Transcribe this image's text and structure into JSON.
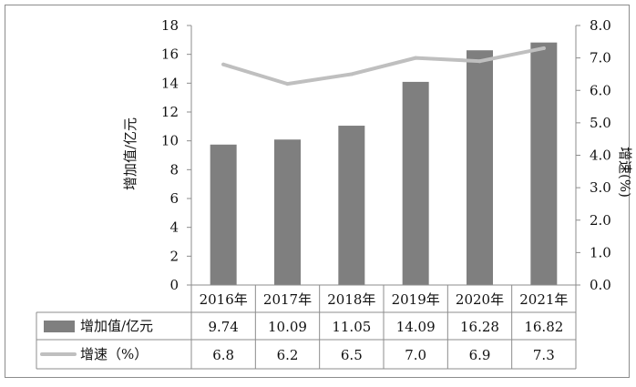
{
  "chart_data": {
    "type": "bar",
    "categories": [
      "2016年",
      "2017年",
      "2018年",
      "2019年",
      "2020年",
      "2021年"
    ],
    "series": [
      {
        "name": "增加值/亿元",
        "type": "bar",
        "axis": "left",
        "color": "#7f7f7f",
        "values": [
          9.74,
          10.09,
          11.05,
          14.09,
          16.28,
          16.82
        ]
      },
      {
        "name": "增速（%）",
        "type": "line",
        "axis": "right",
        "color": "#bfbfbf",
        "values": [
          6.8,
          6.2,
          6.5,
          7.0,
          6.9,
          7.3
        ]
      }
    ],
    "ylabel": "增加值/亿元",
    "y2label": "增速(%)",
    "ylim": [
      0,
      18
    ],
    "y2lim": [
      0,
      8
    ],
    "yticks": [
      "0",
      "2",
      "4",
      "6",
      "8",
      "10",
      "12",
      "14",
      "16",
      "18"
    ],
    "y2ticks": [
      "0.0",
      "1.0",
      "2.0",
      "3.0",
      "4.0",
      "5.0",
      "6.0",
      "7.0",
      "8.0"
    ],
    "table": {
      "rows": [
        {
          "label": "增加值/亿元",
          "values": [
            "9.74",
            "10.09",
            "11.05",
            "14.09",
            "16.28",
            "16.82"
          ]
        },
        {
          "label": "增速（%）",
          "values": [
            "6.8",
            "6.2",
            "6.5",
            "7.0",
            "6.9",
            "7.3"
          ]
        }
      ]
    },
    "grid": false
  }
}
